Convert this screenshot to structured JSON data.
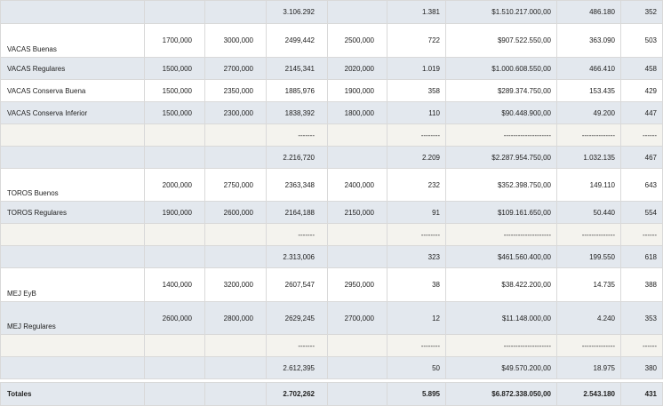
{
  "rows": [
    {
      "style": "gray",
      "h": 26,
      "cells": [
        "",
        "",
        "",
        "3.106.292",
        "",
        "1.381",
        "$1.510.217.000,00",
        "486.180",
        "352"
      ]
    },
    {
      "style": "white",
      "h": 38,
      "label_bottom": true,
      "cells": [
        "VACAS Buenas",
        "1700,000",
        "3000,000",
        "2499,442",
        "2500,000",
        "722",
        "$907.522.550,00",
        "363.090",
        "503"
      ]
    },
    {
      "style": "gray",
      "h": 25,
      "cells": [
        "VACAS Regulares",
        "1500,000",
        "2700,000",
        "2145,341",
        "2020,000",
        "1.019",
        "$1.000.608.550,00",
        "466.410",
        "458"
      ]
    },
    {
      "style": "white",
      "h": 25,
      "cells": [
        "VACAS Conserva Buena",
        "1500,000",
        "2350,000",
        "1885,976",
        "1900,000",
        "358",
        "$289.374.750,00",
        "153.435",
        "429"
      ]
    },
    {
      "style": "gray",
      "h": 25,
      "cells": [
        "VACAS Conserva Inferior",
        "1500,000",
        "2300,000",
        "1838,392",
        "1800,000",
        "110",
        "$90.448.900,00",
        "49.200",
        "447"
      ]
    },
    {
      "style": "beige",
      "h": 25,
      "cells": [
        "",
        "",
        "",
        "-------",
        "",
        "--------",
        "--------------------",
        "--------------",
        "------"
      ]
    },
    {
      "style": "gray",
      "h": 25,
      "cells": [
        "",
        "",
        "",
        "2.216,720",
        "",
        "2.209",
        "$2.287.954.750,00",
        "1.032.135",
        "467"
      ]
    },
    {
      "style": "white",
      "h": 37,
      "label_bottom": true,
      "cells": [
        "TOROS Buenos",
        "2000,000",
        "2750,000",
        "2363,348",
        "2400,000",
        "232",
        "$352.398.750,00",
        "149.110",
        "643"
      ]
    },
    {
      "style": "gray",
      "h": 25,
      "cells": [
        "TOROS Regulares",
        "1900,000",
        "2600,000",
        "2164,188",
        "2150,000",
        "91",
        "$109.161.650,00",
        "50.440",
        "554"
      ]
    },
    {
      "style": "beige",
      "h": 25,
      "cells": [
        "",
        "",
        "",
        "-------",
        "",
        "--------",
        "--------------------",
        "--------------",
        "------"
      ]
    },
    {
      "style": "gray",
      "h": 25,
      "cells": [
        "",
        "",
        "",
        "2.313,006",
        "",
        "323",
        "$461.560.400,00",
        "199.550",
        "618"
      ]
    },
    {
      "style": "white",
      "h": 38,
      "label_bottom": true,
      "cells": [
        "MEJ EyB",
        "1400,000",
        "3200,000",
        "2607,547",
        "2950,000",
        "38",
        "$38.422.200,00",
        "14.735",
        "388"
      ]
    },
    {
      "style": "gray",
      "h": 37,
      "label_bottom": true,
      "cells": [
        "MEJ Regulares",
        "2600,000",
        "2800,000",
        "2629,245",
        "2700,000",
        "12",
        "$11.148.000,00",
        "4.240",
        "353"
      ]
    },
    {
      "style": "beige",
      "h": 25,
      "cells": [
        "",
        "",
        "",
        "-------",
        "",
        "--------",
        "--------------------",
        "--------------",
        "------"
      ]
    },
    {
      "style": "gray",
      "h": 25,
      "cells": [
        "",
        "",
        "",
        "2.612,395",
        "",
        "50",
        "$49.570.200,00",
        "18.975",
        "380"
      ]
    }
  ],
  "totals": [
    "Totales",
    "",
    "",
    "2.702,262",
    "",
    "5.895",
    "$6.872.338.050,00",
    "2.543.180",
    "431"
  ]
}
